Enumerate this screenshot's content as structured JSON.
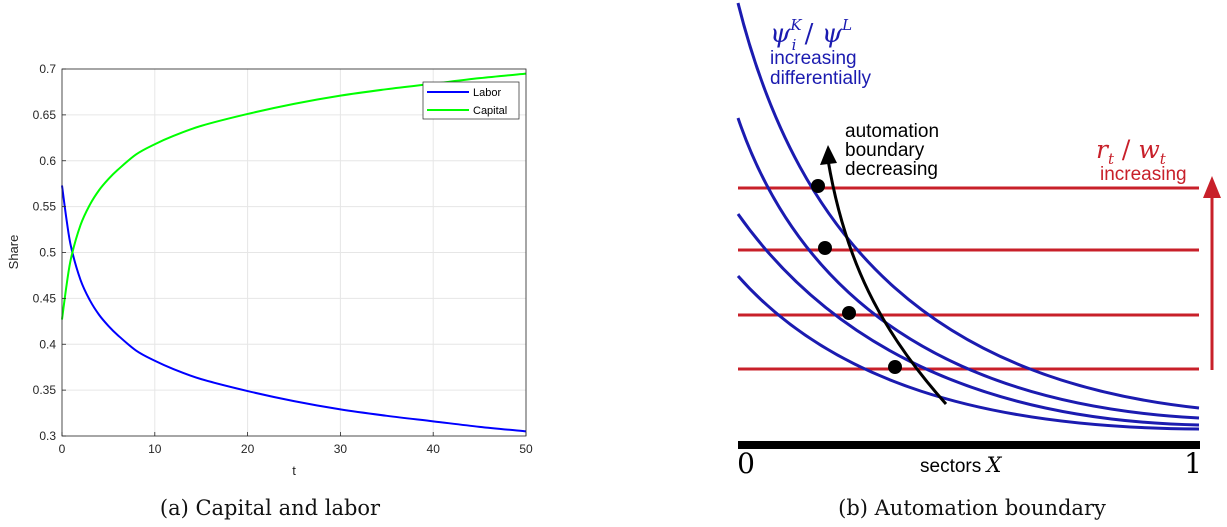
{
  "figures": {
    "left_caption": "(a) Capital and labor",
    "right_caption": "(b) Automation boundary"
  },
  "chart_data": [
    {
      "type": "line",
      "title": "",
      "xlabel": "t",
      "ylabel": "Share",
      "xlim": [
        0,
        50
      ],
      "ylim": [
        0.3,
        0.7
      ],
      "xticks": [
        0,
        10,
        20,
        30,
        40,
        50
      ],
      "yticks": [
        0.3,
        0.35,
        0.4,
        0.45,
        0.5,
        0.55,
        0.6,
        0.65,
        0.7
      ],
      "grid": true,
      "legend_position": "top-right",
      "series": [
        {
          "name": "Labor",
          "color": "#0000ff",
          "x": [
            0,
            0.5,
            1,
            2,
            3,
            4,
            5,
            6,
            8,
            10,
            12,
            15,
            20,
            25,
            30,
            35,
            40,
            45,
            50
          ],
          "y": [
            0.573,
            0.535,
            0.505,
            0.47,
            0.448,
            0.432,
            0.42,
            0.41,
            0.393,
            0.382,
            0.373,
            0.362,
            0.349,
            0.338,
            0.329,
            0.322,
            0.316,
            0.31,
            0.305
          ]
        },
        {
          "name": "Capital",
          "color": "#00ff00",
          "x": [
            0,
            0.5,
            1,
            2,
            3,
            4,
            5,
            6,
            8,
            10,
            12,
            15,
            20,
            25,
            30,
            35,
            40,
            45,
            50
          ],
          "y": [
            0.427,
            0.465,
            0.495,
            0.53,
            0.552,
            0.568,
            0.58,
            0.59,
            0.607,
            0.618,
            0.627,
            0.638,
            0.651,
            0.662,
            0.671,
            0.678,
            0.684,
            0.69,
            0.695
          ]
        }
      ]
    },
    {
      "type": "diagram",
      "xlabel_text": "sectors ",
      "xlabel_var": "X",
      "x_start_label": "0",
      "x_end_label": "1",
      "psi_label": "ψ",
      "psi_sup_k": "K",
      "psi_sub_i": "i",
      "psi_sep": " / ",
      "psi_sup_l": "L",
      "psi_anno_line1": "increasing",
      "psi_anno_line2": "differentially",
      "boundary_line1": "automation",
      "boundary_line2": "boundary",
      "boundary_line3": "decreasing",
      "rate_r": "r",
      "rate_w": "w",
      "rate_sub": "t",
      "rate_anno": "increasing",
      "colors": {
        "curve": "#1b1bb0",
        "rate": "#c8202a",
        "boundary": "#000000"
      }
    }
  ]
}
